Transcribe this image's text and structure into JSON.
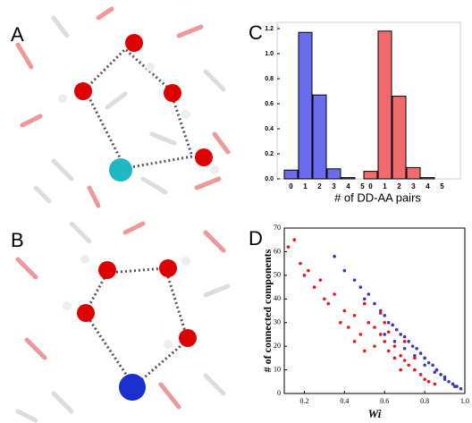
{
  "panel_labels": [
    "A",
    "B",
    "C",
    "D"
  ],
  "chart_data": [
    {
      "type": "bar",
      "xlabel": "# of DD-AA pairs",
      "ylim": [
        0,
        1.25
      ],
      "yticks": [
        {
          "value": 0,
          "label": "0.0"
        },
        0.2,
        0.4,
        0.6,
        0.8,
        {
          "value": 1,
          "label": "1.0"
        },
        1.2
      ],
      "series": [
        {
          "color": "#6b6bf0",
          "categories": [
            "0",
            "1",
            "2",
            "3",
            "4",
            "5"
          ],
          "values": [
            0.07,
            1.17,
            0.67,
            0.08,
            0.01,
            0
          ]
        },
        {
          "color": "#f06b6b",
          "categories": [
            "0",
            "1",
            "2",
            "3",
            "4",
            "5"
          ],
          "values": [
            0.06,
            1.18,
            0.66,
            0.09,
            0.01,
            0
          ]
        }
      ]
    },
    {
      "type": "scatter",
      "ylabel": "# of connected components",
      "xlabel": "Wi",
      "xlim": [
        0.1,
        1.0
      ],
      "xticks": [
        0.2,
        0.4,
        0.6,
        0.8,
        {
          "value": 1,
          "label": "1.0"
        }
      ],
      "ylim": [
        0,
        70
      ],
      "yticks": [
        0,
        10,
        20,
        30,
        40,
        50,
        60,
        70
      ],
      "series": [
        {
          "color": "#3b3bb0",
          "x": [
            0.35,
            0.4,
            0.45,
            0.48,
            0.5,
            0.52,
            0.55,
            0.58,
            0.6,
            0.62,
            0.64,
            0.66,
            0.68,
            0.7,
            0.72,
            0.74,
            0.76,
            0.78,
            0.8,
            0.82,
            0.84,
            0.86,
            0.88,
            0.9,
            0.92,
            0.94,
            0.96,
            0.98,
            0.6,
            0.65,
            0.7,
            0.75,
            0.8,
            0.85,
            0.9,
            0.95
          ],
          "y": [
            58,
            52,
            48,
            45,
            40,
            42,
            38,
            35,
            33,
            30,
            29,
            27,
            25,
            24,
            22,
            20,
            19,
            17,
            15,
            13,
            12,
            10,
            8,
            7,
            5,
            4,
            3,
            2,
            25,
            22,
            19,
            16,
            12,
            9,
            6,
            3
          ]
        },
        {
          "color": "#e81818",
          "x": [
            0.12,
            0.15,
            0.18,
            0.2,
            0.22,
            0.25,
            0.28,
            0.3,
            0.32,
            0.35,
            0.38,
            0.4,
            0.42,
            0.45,
            0.48,
            0.5,
            0.52,
            0.55,
            0.55,
            0.58,
            0.6,
            0.6,
            0.62,
            0.65,
            0.65,
            0.68,
            0.7,
            0.7,
            0.72,
            0.75,
            0.75,
            0.78,
            0.8,
            0.82,
            0.85,
            0.5,
            0.45,
            0.58,
            0.62,
            0.68
          ],
          "y": [
            62,
            65,
            55,
            50,
            52,
            45,
            48,
            40,
            38,
            42,
            30,
            35,
            28,
            33,
            25,
            38,
            30,
            28,
            20,
            25,
            22,
            30,
            18,
            20,
            15,
            16,
            14,
            22,
            12,
            10,
            15,
            8,
            6,
            5,
            4,
            18,
            22,
            34,
            26,
            10
          ]
        }
      ]
    }
  ]
}
